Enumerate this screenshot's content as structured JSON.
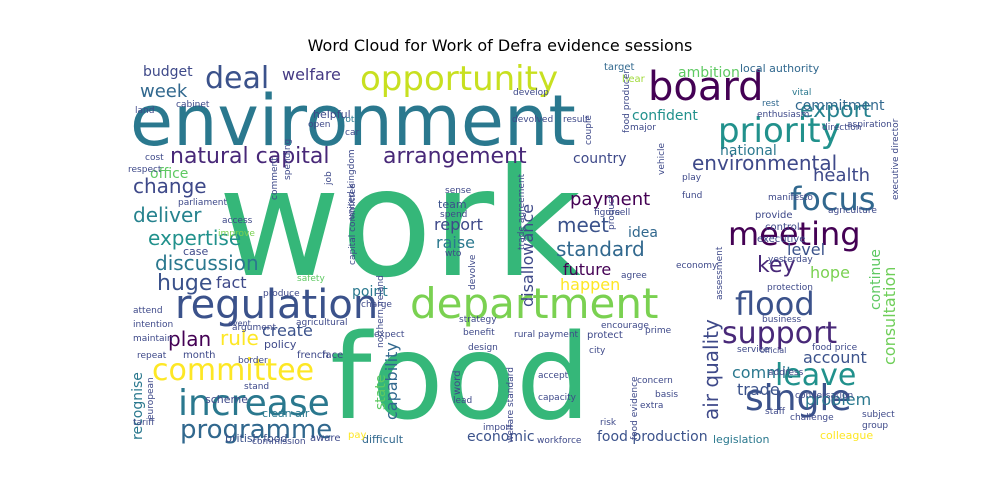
{
  "chart_data": {
    "type": "wordcloud",
    "title": "Word Cloud for Work of Defra evidence sessions",
    "background": "#ffffff",
    "colormap": "viridis",
    "words": [
      {
        "text": "work",
        "color": "#35b779"
      },
      {
        "text": "food",
        "color": "#35b779"
      },
      {
        "text": "environment",
        "color": "#2a788e"
      },
      {
        "text": "department",
        "color": "#7ad151"
      },
      {
        "text": "opportunity",
        "color": "#c8e020"
      },
      {
        "text": "board",
        "color": "#440154"
      },
      {
        "text": "regulation",
        "color": "#3b528b"
      },
      {
        "text": "priority",
        "color": "#21918c"
      },
      {
        "text": "single",
        "color": "#3b528b"
      },
      {
        "text": "increase",
        "color": "#2a788e"
      },
      {
        "text": "committee",
        "color": "#fde725"
      },
      {
        "text": "focus",
        "color": "#31688e"
      },
      {
        "text": "meeting",
        "color": "#440154"
      },
      {
        "text": "flood",
        "color": "#3b528b"
      },
      {
        "text": "support",
        "color": "#482878"
      },
      {
        "text": "leave",
        "color": "#21918c"
      },
      {
        "text": "deal",
        "color": "#3b528b"
      },
      {
        "text": "programme",
        "color": "#31688e"
      },
      {
        "text": "natural capital",
        "color": "#482878"
      },
      {
        "text": "arrangement",
        "color": "#482878"
      },
      {
        "text": "environmental",
        "color": "#3e4989"
      },
      {
        "text": "export",
        "color": "#26828e"
      },
      {
        "text": "change",
        "color": "#3e4989"
      },
      {
        "text": "deliver",
        "color": "#26828e"
      },
      {
        "text": "expertise",
        "color": "#21918c"
      },
      {
        "text": "discussion",
        "color": "#2a788e"
      },
      {
        "text": "huge",
        "color": "#3b528b"
      },
      {
        "text": "air quality",
        "color": "#3e4989"
      },
      {
        "text": "consultation",
        "color": "#6ece58"
      },
      {
        "text": "welfare",
        "color": "#443983"
      },
      {
        "text": "week",
        "color": "#31688e"
      },
      {
        "text": "budget",
        "color": "#3e4989"
      },
      {
        "text": "ambition",
        "color": "#5ec962"
      },
      {
        "text": "commitment",
        "color": "#31688e"
      },
      {
        "text": "confident",
        "color": "#21918c"
      },
      {
        "text": "national",
        "color": "#2a788e"
      },
      {
        "text": "health",
        "color": "#3e4989"
      },
      {
        "text": "payment",
        "color": "#440154"
      },
      {
        "text": "meet",
        "color": "#3b528b"
      },
      {
        "text": "standard",
        "color": "#31688e"
      },
      {
        "text": "future",
        "color": "#440154"
      },
      {
        "text": "happen",
        "color": "#fde725"
      },
      {
        "text": "disallowance",
        "color": "#3e4989"
      },
      {
        "text": "capability",
        "color": "#31688e"
      },
      {
        "text": "report",
        "color": "#3e4989"
      },
      {
        "text": "raise",
        "color": "#2a788e"
      },
      {
        "text": "idea",
        "color": "#31688e"
      },
      {
        "text": "key",
        "color": "#482878"
      },
      {
        "text": "hope",
        "color": "#7ad151"
      },
      {
        "text": "level",
        "color": "#3b528b"
      },
      {
        "text": "account",
        "color": "#3b528b"
      },
      {
        "text": "commit",
        "color": "#2a788e"
      },
      {
        "text": "trade",
        "color": "#3b528b"
      },
      {
        "text": "problem",
        "color": "#2a788e"
      },
      {
        "text": "plan",
        "color": "#440154"
      },
      {
        "text": "rule",
        "color": "#fde725"
      },
      {
        "text": "create",
        "color": "#3b528b"
      },
      {
        "text": "fact",
        "color": "#3e4989"
      },
      {
        "text": "office",
        "color": "#5ec962"
      },
      {
        "text": "point",
        "color": "#2a788e"
      },
      {
        "text": "state",
        "color": "#5ec962"
      },
      {
        "text": "economic",
        "color": "#3b528b"
      },
      {
        "text": "country",
        "color": "#3e4989"
      },
      {
        "text": "recognise",
        "color": "#2a788e"
      },
      {
        "text": "continue",
        "color": "#5ec962"
      },
      {
        "text": "food production",
        "color": "#3b528b"
      },
      {
        "text": "legislation",
        "color": "#2a788e"
      },
      {
        "text": "difficult",
        "color": "#31688e"
      },
      {
        "text": "colleague",
        "color": "#fde725"
      },
      {
        "text": "local authority",
        "color": "#31688e"
      },
      {
        "text": "policy",
        "color": "#3e4989"
      },
      {
        "text": "month",
        "color": "#3e4989"
      },
      {
        "text": "team",
        "color": "#3b528b"
      },
      {
        "text": "wto",
        "color": "#3e4989"
      },
      {
        "text": "parliament",
        "color": "#3e4989"
      },
      {
        "text": "clean air",
        "color": "#2a788e"
      },
      {
        "text": "british food",
        "color": "#3b528b"
      },
      {
        "text": "scheme",
        "color": "#3e4989"
      },
      {
        "text": "case",
        "color": "#3e4989"
      },
      {
        "text": "french",
        "color": "#3e4989"
      },
      {
        "text": "face",
        "color": "#3e4989"
      },
      {
        "text": "vital",
        "color": "#2a788e"
      },
      {
        "text": "rest",
        "color": "#31688e"
      },
      {
        "text": "target",
        "color": "#31688e"
      },
      {
        "text": "hear",
        "color": "#a0da39"
      },
      {
        "text": "helpful",
        "color": "#3e4989"
      },
      {
        "text": "cost",
        "color": "#3e4989"
      },
      {
        "text": "respect",
        "color": "#3e4989"
      },
      {
        "text": "open",
        "color": "#3e4989"
      },
      {
        "text": "vote",
        "color": "#2a788e"
      },
      {
        "text": "car",
        "color": "#3e4989"
      },
      {
        "text": "devolved",
        "color": "#3e4989"
      },
      {
        "text": "result",
        "color": "#3e4989"
      },
      {
        "text": "develop",
        "color": "#3e4989"
      },
      {
        "text": "major",
        "color": "#3e4989"
      },
      {
        "text": "couple",
        "color": "#3e4989"
      },
      {
        "text": "enthusiasm",
        "color": "#3e4989"
      },
      {
        "text": "direction",
        "color": "#3e4989"
      },
      {
        "text": "cabinet",
        "color": "#3e4989"
      },
      {
        "text": "land",
        "color": "#3e4989"
      },
      {
        "text": "manifesto",
        "color": "#3e4989"
      },
      {
        "text": "provide",
        "color": "#3e4989"
      },
      {
        "text": "control",
        "color": "#3e4989"
      },
      {
        "text": "executive",
        "color": "#3e4989"
      },
      {
        "text": "yesterday",
        "color": "#3e4989"
      },
      {
        "text": "agriculture",
        "color": "#3e4989"
      },
      {
        "text": "access",
        "color": "#3e4989"
      },
      {
        "text": "improve",
        "color": "#7ad151"
      },
      {
        "text": "sense",
        "color": "#3e4989"
      },
      {
        "text": "spend",
        "color": "#3e4989"
      },
      {
        "text": "figure",
        "color": "#3e4989"
      },
      {
        "text": "product",
        "color": "#3e4989"
      },
      {
        "text": "sell",
        "color": "#3e4989"
      },
      {
        "text": "vehicle",
        "color": "#3e4989"
      },
      {
        "text": "play",
        "color": "#3e4989"
      },
      {
        "text": "fund",
        "color": "#3e4989"
      },
      {
        "text": "economy",
        "color": "#3e4989"
      },
      {
        "text": "agree",
        "color": "#3e4989"
      },
      {
        "text": "encourage",
        "color": "#3e4989"
      },
      {
        "text": "strategy",
        "color": "#3e4989"
      },
      {
        "text": "charge",
        "color": "#3e4989"
      },
      {
        "text": "devolve",
        "color": "#3e4989"
      },
      {
        "text": "intention",
        "color": "#3e4989"
      },
      {
        "text": "attend",
        "color": "#3e4989"
      },
      {
        "text": "agricultural",
        "color": "#3e4989"
      },
      {
        "text": "safety",
        "color": "#5ec962"
      },
      {
        "text": "maintain",
        "color": "#3e4989"
      },
      {
        "text": "argument",
        "color": "#3e4989"
      },
      {
        "text": "repeat",
        "color": "#3e4989"
      },
      {
        "text": "border",
        "color": "#3e4989"
      },
      {
        "text": "expect",
        "color": "#3e4989"
      },
      {
        "text": "benefit",
        "color": "#3e4989"
      },
      {
        "text": "rural payment",
        "color": "#3e4989"
      },
      {
        "text": "protect",
        "color": "#3e4989"
      },
      {
        "text": "prime",
        "color": "#3e4989"
      },
      {
        "text": "city",
        "color": "#3e4989"
      },
      {
        "text": "design",
        "color": "#3e4989"
      },
      {
        "text": "accept",
        "color": "#3e4989"
      },
      {
        "text": "capacity",
        "color": "#3e4989"
      },
      {
        "text": "lead",
        "color": "#3e4989"
      },
      {
        "text": "import",
        "color": "#3e4989"
      },
      {
        "text": "concern",
        "color": "#3e4989"
      },
      {
        "text": "basis",
        "color": "#3e4989"
      },
      {
        "text": "extra",
        "color": "#3e4989"
      },
      {
        "text": "risk",
        "color": "#3e4989"
      },
      {
        "text": "staff",
        "color": "#3e4989"
      },
      {
        "text": "challenge",
        "color": "#3e4989"
      },
      {
        "text": "business",
        "color": "#3e4989"
      },
      {
        "text": "food price",
        "color": "#3e4989"
      },
      {
        "text": "protection",
        "color": "#3e4989"
      },
      {
        "text": "address",
        "color": "#3e4989"
      },
      {
        "text": "subject",
        "color": "#3e4989"
      },
      {
        "text": "group",
        "color": "#3e4989"
      },
      {
        "text": "workforce",
        "color": "#3e4989"
      },
      {
        "text": "commission",
        "color": "#3e4989"
      },
      {
        "text": "aware",
        "color": "#3e4989"
      },
      {
        "text": "pay",
        "color": "#fde725"
      },
      {
        "text": "european",
        "color": "#3e4989"
      },
      {
        "text": "tariff",
        "color": "#3e4989"
      },
      {
        "text": "stand",
        "color": "#3e4989"
      },
      {
        "text": "northern ireland",
        "color": "#3e4989"
      },
      {
        "text": "word",
        "color": "#3e4989"
      },
      {
        "text": "welfare standard",
        "color": "#3e4989"
      },
      {
        "text": "food evidence",
        "color": "#3e4989"
      },
      {
        "text": "food producer",
        "color": "#3e4989"
      },
      {
        "text": "job",
        "color": "#3e4989"
      },
      {
        "text": "united kingdom",
        "color": "#3e4989"
      },
      {
        "text": "capital committee",
        "color": "#3e4989"
      },
      {
        "text": "trade agreement",
        "color": "#3e4989"
      },
      {
        "text": "aspiration",
        "color": "#3e4989"
      },
      {
        "text": "executive director",
        "color": "#3e4989"
      },
      {
        "text": "conversation",
        "color": "#3e4989"
      },
      {
        "text": "service",
        "color": "#3e4989"
      },
      {
        "text": "official",
        "color": "#3e4989"
      },
      {
        "text": "assessment",
        "color": "#3e4989"
      },
      {
        "text": "spending",
        "color": "#3e4989"
      },
      {
        "text": "comment",
        "color": "#3e4989"
      },
      {
        "text": "event",
        "color": "#3e4989"
      },
      {
        "text": "produce",
        "color": "#3e4989"
      }
    ]
  }
}
